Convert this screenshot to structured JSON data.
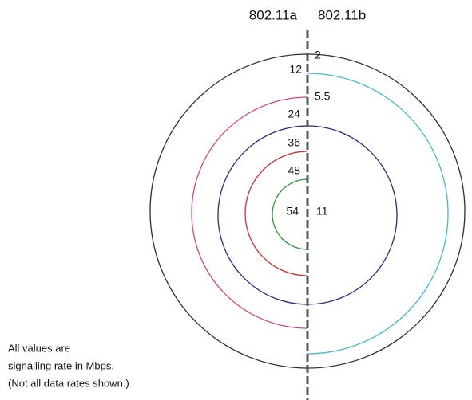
{
  "header": {
    "left": "802.11a",
    "right": "802.11b"
  },
  "left_rates": [
    "12",
    "24",
    "36",
    "48",
    "54"
  ],
  "right_rates": [
    "2",
    "5.5",
    "11"
  ],
  "note": [
    "All values are",
    "signalling rate in Mbps.",
    "(Not all data rates shown.)"
  ]
}
